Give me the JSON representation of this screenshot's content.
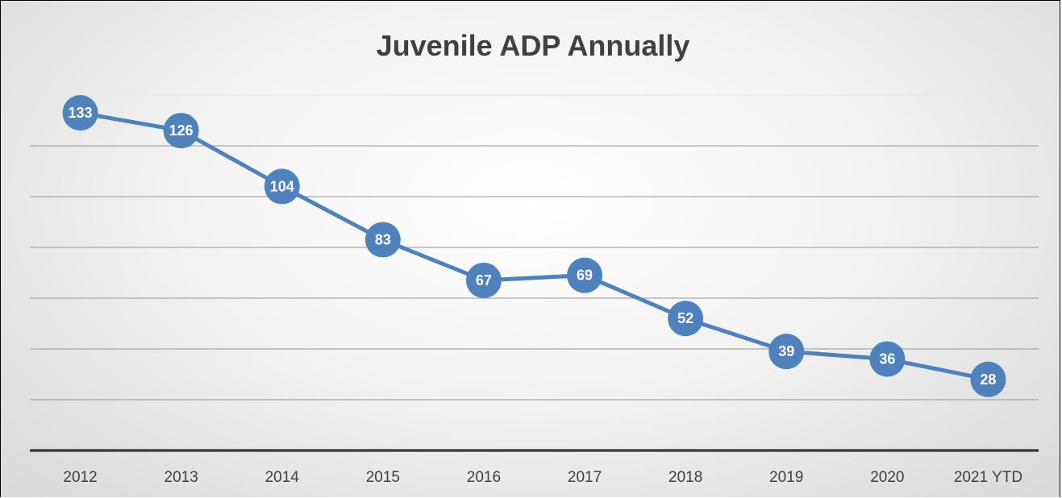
{
  "chart_data": {
    "type": "line",
    "title": "Juvenile ADP Annually",
    "xlabel": "",
    "ylabel": "",
    "categories": [
      "2012",
      "2013",
      "2014",
      "2015",
      "2016",
      "2017",
      "2018",
      "2019",
      "2020",
      "2021 YTD"
    ],
    "series": [
      {
        "values": [
          133,
          126,
          104,
          83,
          67,
          69,
          52,
          39,
          36,
          28
        ],
        "color": "#4f81bd"
      }
    ],
    "ylim": [
      0,
      140
    ],
    "y_gridlines": [
      20,
      40,
      60,
      80,
      100,
      120,
      140
    ],
    "grid": true,
    "y_tick_labels_shown": false,
    "data_labels": true,
    "legend": "none"
  }
}
